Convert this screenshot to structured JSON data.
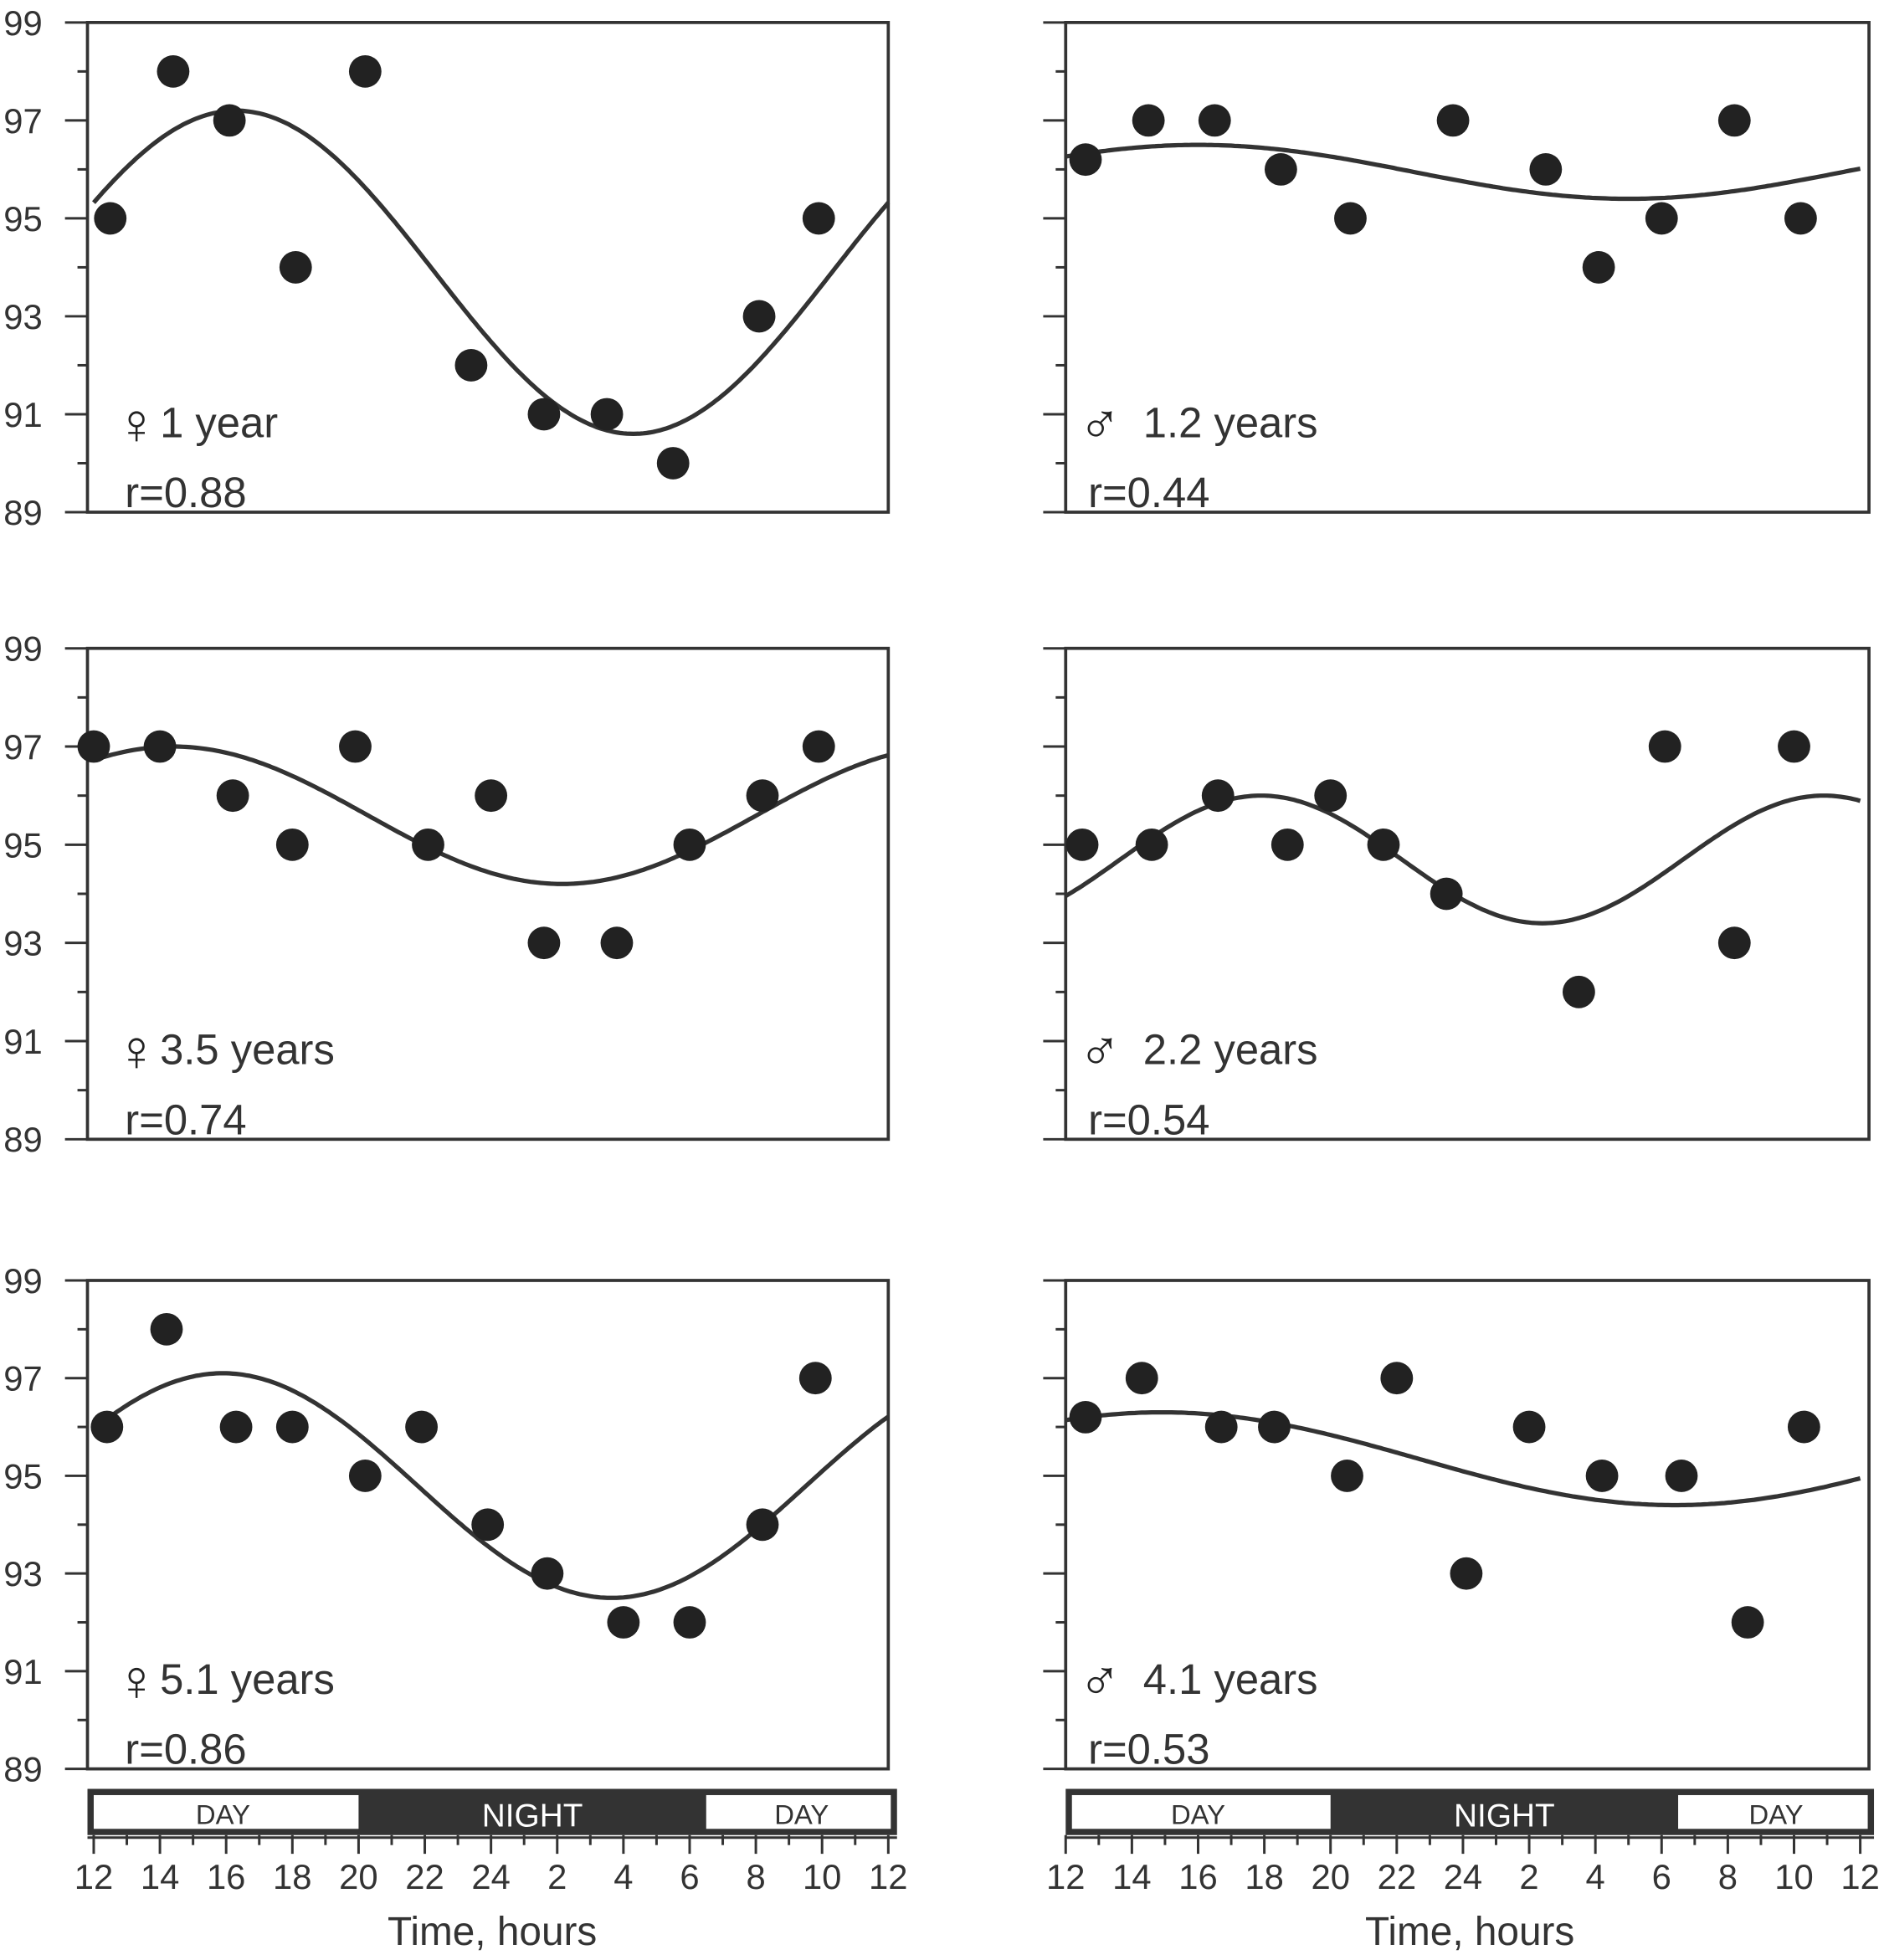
{
  "chart_data": {
    "type": "scatter",
    "xlabel": "Time, hours",
    "x_tick_labels": [
      "12",
      "14",
      "16",
      "18",
      "20",
      "22",
      "24",
      "2",
      "4",
      "6",
      "8",
      "10",
      "12"
    ],
    "xlim_hours": [
      12,
      36
    ],
    "ylim": [
      89,
      99
    ],
    "y_tick_labels": [
      "99",
      "97",
      "95",
      "93",
      "91",
      "89"
    ],
    "day_night_bar": {
      "day_label": "DAY",
      "night_label": "NIGHT",
      "night_start_hour": 20,
      "night_end_hour": 30.5
    },
    "panels": [
      {
        "sex_symbol": "♀",
        "age": "1 year",
        "r": "r=0.88",
        "points": [
          [
            12.5,
            95
          ],
          [
            14.4,
            98
          ],
          [
            16.1,
            97
          ],
          [
            18.1,
            94
          ],
          [
            20.2,
            98
          ],
          [
            23.4,
            92
          ],
          [
            25.6,
            91
          ],
          [
            27.5,
            91
          ],
          [
            29.5,
            90
          ],
          [
            32.1,
            93
          ],
          [
            33.9,
            95
          ]
        ],
        "fit": {
          "mesor": 93.9,
          "amplitude": 3.3,
          "period": 24,
          "acrophase": 16.3
        }
      },
      {
        "sex_symbol": "♂",
        "age": "1.2 years",
        "r": "r=0.44",
        "points": [
          [
            12.6,
            96.2
          ],
          [
            14.5,
            97
          ],
          [
            16.5,
            97
          ],
          [
            18.5,
            96
          ],
          [
            20.6,
            95
          ],
          [
            23.7,
            97
          ],
          [
            26.5,
            96
          ],
          [
            28.1,
            94
          ],
          [
            30.0,
            95
          ],
          [
            32.2,
            97
          ],
          [
            34.2,
            95
          ]
        ],
        "fit": {
          "mesor": 95.95,
          "amplitude": 0.55,
          "period": 26,
          "acrophase": 16.0
        }
      },
      {
        "sex_symbol": "♀",
        "age": "3.5 years",
        "r": "r=0.74",
        "points": [
          [
            12.0,
            97
          ],
          [
            14.0,
            97
          ],
          [
            16.2,
            96
          ],
          [
            18.0,
            95
          ],
          [
            19.9,
            97
          ],
          [
            22.1,
            95
          ],
          [
            24.0,
            96
          ],
          [
            25.6,
            93
          ],
          [
            27.8,
            93
          ],
          [
            30.0,
            95
          ],
          [
            32.2,
            96
          ],
          [
            33.9,
            97
          ]
        ],
        "fit": {
          "mesor": 95.6,
          "amplitude": 1.4,
          "period": 23.5,
          "acrophase": 14.4
        }
      },
      {
        "sex_symbol": "♂",
        "age": "2.2 years",
        "r": "r=0.54",
        "points": [
          [
            12.5,
            95
          ],
          [
            14.6,
            95
          ],
          [
            16.6,
            96
          ],
          [
            18.7,
            95
          ],
          [
            20.0,
            96
          ],
          [
            21.6,
            95
          ],
          [
            23.5,
            94
          ],
          [
            27.5,
            92
          ],
          [
            30.1,
            97
          ],
          [
            32.2,
            93
          ],
          [
            34.0,
            97
          ]
        ],
        "fit": {
          "mesor": 94.7,
          "amplitude": 1.3,
          "period": 17,
          "acrophase": 17.9
        }
      },
      {
        "sex_symbol": "♀",
        "age": "5.1 years",
        "r": "r=0.86",
        "points": [
          [
            12.4,
            96
          ],
          [
            14.2,
            98
          ],
          [
            16.3,
            96
          ],
          [
            18.0,
            96
          ],
          [
            20.2,
            95
          ],
          [
            21.9,
            96
          ],
          [
            23.9,
            94
          ],
          [
            25.7,
            93
          ],
          [
            28.0,
            92
          ],
          [
            30.0,
            92
          ],
          [
            32.2,
            94
          ],
          [
            33.8,
            97
          ]
        ],
        "fit": {
          "mesor": 94.8,
          "amplitude": 2.3,
          "period": 23.5,
          "acrophase": 15.9
        }
      },
      {
        "sex_symbol": "♂",
        "age": "4.1 years",
        "r": "r=0.53",
        "points": [
          [
            12.6,
            96.2
          ],
          [
            14.3,
            97
          ],
          [
            16.7,
            96
          ],
          [
            18.3,
            96
          ],
          [
            20.5,
            95
          ],
          [
            22.0,
            97
          ],
          [
            24.1,
            93
          ],
          [
            26.0,
            96
          ],
          [
            28.2,
            95
          ],
          [
            30.6,
            95
          ],
          [
            32.6,
            92
          ],
          [
            34.3,
            96
          ]
        ],
        "fit": {
          "mesor": 95.35,
          "amplitude": 0.95,
          "period": 31,
          "acrophase": 14.9
        }
      }
    ]
  }
}
